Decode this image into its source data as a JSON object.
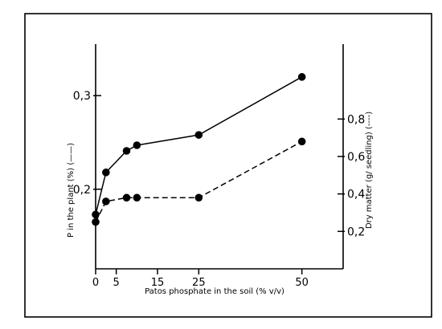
{
  "chart_data": {
    "type": "line",
    "xlabel": "Patos phosphate in the soil (% v/v)",
    "ylabel_left": "P in the plant (%) (——)",
    "ylabel_right": "Dry matter (g/ seedling) (----)",
    "x_ticks": [
      0,
      5,
      15,
      25,
      50
    ],
    "x_tick_labels": [
      "0",
      "5",
      "15",
      "25",
      "50"
    ],
    "xlim": [
      0,
      60
    ],
    "y_left_ticks": [
      0.2,
      0.3
    ],
    "y_left_tick_labels": [
      "0,2",
      "0,3"
    ],
    "ylim_left": [
      0.115,
      0.355
    ],
    "y_right_ticks": [
      0.2,
      0.4,
      0.6,
      0.8
    ],
    "y_right_tick_labels": [
      "0,2",
      "0,4",
      "0,6",
      "0,8"
    ],
    "ylim_right": [
      0.0,
      1.2
    ],
    "grid": false,
    "series": [
      {
        "axis": "left",
        "style": "solid",
        "x": [
          0,
          2.5,
          7.5,
          10,
          25,
          50
        ],
        "values": [
          0.173,
          0.218,
          0.241,
          0.247,
          0.258,
          0.32
        ]
      },
      {
        "axis": "right",
        "style": "dashed",
        "x": [
          0,
          2.5,
          7.5,
          10,
          25,
          50
        ],
        "values": [
          0.25,
          0.36,
          0.38,
          0.38,
          0.38,
          0.68
        ]
      }
    ]
  }
}
